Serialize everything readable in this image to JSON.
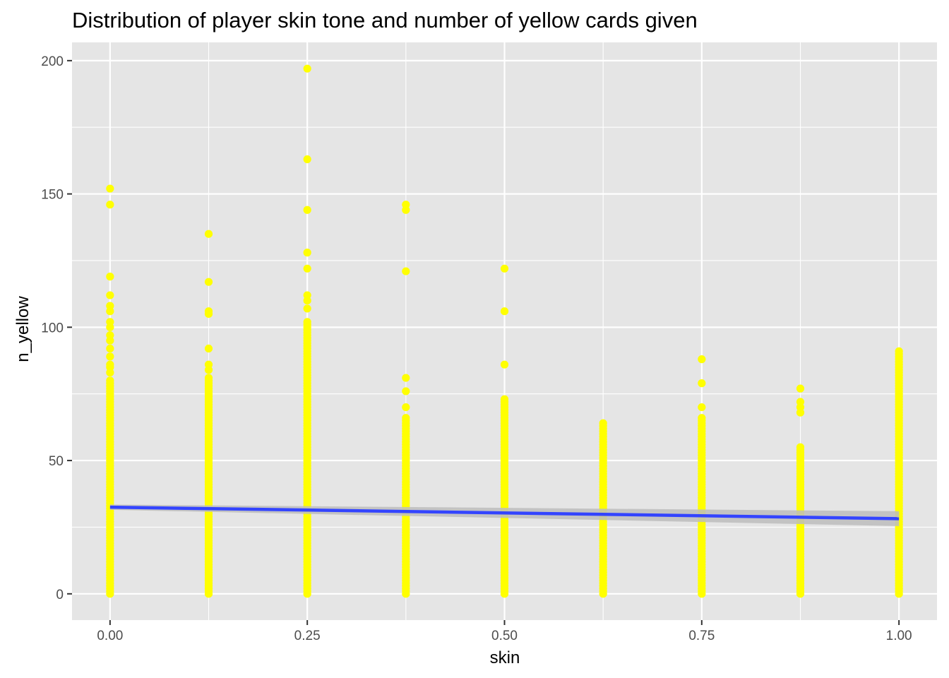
{
  "chart_data": {
    "type": "scatter",
    "title": "Distribution of player skin tone and number of yellow cards given",
    "xlabel": "skin",
    "ylabel": "n_yellow",
    "xlim": [
      -0.0482,
      1.0482
    ],
    "ylim": [
      -9.85,
      206.85
    ],
    "x_ticks": [
      0,
      0.25,
      0.5,
      0.75,
      1.0
    ],
    "x_tick_labels": [
      "0.00",
      "0.25",
      "0.50",
      "0.75",
      "1.00"
    ],
    "y_ticks": [
      0,
      50,
      100,
      150,
      200
    ],
    "y_tick_labels": [
      "0",
      "50",
      "100",
      "150",
      "200"
    ],
    "grid": true,
    "legend": "none",
    "colors": {
      "panel_background": "#e5e5e5",
      "grid_line": "#ffffff",
      "points": "#ffff00",
      "fit_line": "#3344ff",
      "confidence_band": "#bdbdbd"
    },
    "point_columns": [
      {
        "x": 0.0,
        "dense_max": 80,
        "extra": [
          152,
          146,
          119,
          112,
          108,
          106,
          102,
          100,
          97,
          95,
          92,
          89,
          86,
          85,
          83
        ]
      },
      {
        "x": 0.125,
        "dense_max": 81,
        "extra": [
          135,
          117,
          106,
          105,
          92,
          86,
          84
        ]
      },
      {
        "x": 0.25,
        "dense_max": 102,
        "extra": [
          197,
          163,
          144,
          128,
          122,
          112,
          110,
          107
        ]
      },
      {
        "x": 0.375,
        "dense_max": 66,
        "extra": [
          146,
          144,
          121,
          81,
          76,
          70
        ]
      },
      {
        "x": 0.5,
        "dense_max": 73,
        "extra": [
          122,
          106,
          86
        ]
      },
      {
        "x": 0.625,
        "dense_max": 64,
        "extra": []
      },
      {
        "x": 0.75,
        "dense_max": 66,
        "extra": [
          88,
          79,
          70
        ]
      },
      {
        "x": 0.875,
        "dense_max": 55,
        "extra": [
          77,
          72,
          70,
          68
        ]
      },
      {
        "x": 1.0,
        "dense_max": 91,
        "extra": []
      }
    ],
    "fit_line": {
      "method": "lm",
      "x": [
        0,
        1
      ],
      "y": [
        32.5,
        28.2
      ],
      "ci_lower": [
        31.5,
        25.4
      ],
      "ci_upper": [
        33.5,
        31.0
      ]
    }
  }
}
